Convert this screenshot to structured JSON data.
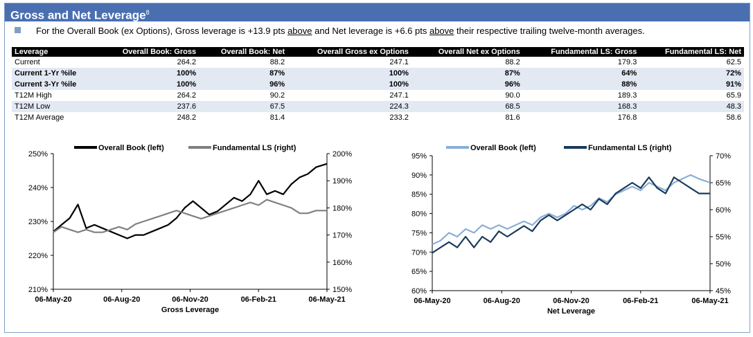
{
  "header": {
    "title": "Gross and Net Leverage",
    "footnote": "8"
  },
  "summary": {
    "pre": "For the Overall Book (ex Options), Gross leverage is +13.9 pts ",
    "u1": "above",
    "mid": " and Net leverage is +6.6 pts ",
    "u2": "above",
    "post": " their respective trailing twelve-month averages."
  },
  "table": {
    "columns": [
      "Leverage",
      "Overall Book: Gross",
      "Overall Book: Net",
      "Overall Gross ex Options",
      "Overall Net ex Options",
      "Fundamental LS: Gross",
      "Fundamental LS: Net"
    ],
    "rows": [
      [
        "Current",
        "264.2",
        "88.2",
        "247.1",
        "88.2",
        "179.3",
        "62.5"
      ],
      [
        "Current 1-Yr %ile",
        "100%",
        "87%",
        "100%",
        "87%",
        "64%",
        "72%"
      ],
      [
        "Current 3-Yr %ile",
        "100%",
        "96%",
        "100%",
        "96%",
        "88%",
        "91%"
      ],
      [
        "T12M High",
        "264.2",
        "90.2",
        "247.1",
        "90.0",
        "189.3",
        "65.9"
      ],
      [
        "T12M Low",
        "237.6",
        "67.5",
        "224.3",
        "68.5",
        "168.3",
        "48.3"
      ],
      [
        "T12M Average",
        "248.2",
        "81.4",
        "233.2",
        "81.6",
        "176.8",
        "58.6"
      ]
    ]
  },
  "chart_data": [
    {
      "type": "line",
      "xlabel": "Gross Leverage",
      "x_ticks": [
        "06-May-20",
        "06-Aug-20",
        "06-Nov-20",
        "06-Feb-21",
        "06-May-21"
      ],
      "y_left": {
        "range": [
          210,
          250
        ],
        "ticks": [
          "210%",
          "220%",
          "230%",
          "240%",
          "250%"
        ]
      },
      "y_right": {
        "range": [
          150,
          200
        ],
        "ticks": [
          "150%",
          "160%",
          "170%",
          "180%",
          "190%",
          "200%"
        ]
      },
      "legend_position": "top",
      "series": [
        {
          "name": "Overall Book (left)",
          "axis": "left",
          "color": "#000000",
          "x": [
            0,
            0.03,
            0.06,
            0.09,
            0.12,
            0.15,
            0.18,
            0.21,
            0.24,
            0.27,
            0.3,
            0.33,
            0.36,
            0.39,
            0.42,
            0.45,
            0.48,
            0.51,
            0.54,
            0.57,
            0.6,
            0.63,
            0.66,
            0.69,
            0.72,
            0.75,
            0.78,
            0.81,
            0.84,
            0.87,
            0.9,
            0.93,
            0.96,
            1.0
          ],
          "values": [
            227,
            229,
            231,
            235,
            228,
            229,
            228,
            227,
            226,
            225,
            226,
            226,
            227,
            228,
            229,
            231,
            234,
            236,
            234,
            232,
            233,
            235,
            237,
            236,
            238,
            242,
            238,
            239,
            238,
            241,
            243,
            244,
            246,
            247
          ]
        },
        {
          "name": "Fundamental LS (right)",
          "axis": "right",
          "color": "#808080",
          "x": [
            0,
            0.03,
            0.06,
            0.09,
            0.12,
            0.15,
            0.18,
            0.21,
            0.24,
            0.27,
            0.3,
            0.33,
            0.36,
            0.39,
            0.42,
            0.45,
            0.48,
            0.51,
            0.54,
            0.57,
            0.6,
            0.63,
            0.66,
            0.69,
            0.72,
            0.75,
            0.78,
            0.81,
            0.84,
            0.87,
            0.9,
            0.93,
            0.96,
            1.0
          ],
          "values": [
            171,
            173,
            172,
            171,
            172,
            171,
            171,
            172,
            173,
            172,
            174,
            175,
            176,
            177,
            178,
            179,
            178,
            177,
            176,
            177,
            178,
            179,
            180,
            181,
            182,
            181,
            183,
            182,
            181,
            180,
            178,
            178,
            179,
            179
          ]
        }
      ]
    },
    {
      "type": "line",
      "xlabel": "Net Leverage",
      "x_ticks": [
        "06-May-20",
        "06-Aug-20",
        "06-Nov-20",
        "06-Feb-21",
        "06-May-21"
      ],
      "y_left": {
        "range": [
          60,
          95
        ],
        "ticks": [
          "60%",
          "65%",
          "70%",
          "75%",
          "80%",
          "85%",
          "90%",
          "95%"
        ]
      },
      "y_right": {
        "range": [
          45,
          70
        ],
        "ticks": [
          "45%",
          "50%",
          "55%",
          "60%",
          "65%",
          "70%"
        ]
      },
      "legend_position": "top",
      "series": [
        {
          "name": "Overall Book (left)",
          "axis": "left",
          "color": "#8aaed6",
          "x": [
            0,
            0.03,
            0.06,
            0.09,
            0.12,
            0.15,
            0.18,
            0.21,
            0.24,
            0.27,
            0.3,
            0.33,
            0.36,
            0.39,
            0.42,
            0.45,
            0.48,
            0.51,
            0.54,
            0.57,
            0.6,
            0.63,
            0.66,
            0.69,
            0.72,
            0.75,
            0.78,
            0.81,
            0.84,
            0.87,
            0.9,
            0.93,
            0.96,
            1.0
          ],
          "values": [
            72,
            73,
            75,
            74,
            76,
            75,
            77,
            76,
            77,
            76,
            77,
            78,
            77,
            79,
            80,
            79,
            80,
            82,
            81,
            82,
            84,
            83,
            85,
            86,
            87,
            86,
            88,
            87,
            86,
            88,
            89,
            90,
            89,
            88
          ]
        },
        {
          "name": "Fundamental LS (right)",
          "axis": "right",
          "color": "#1a3a5c",
          "x": [
            0,
            0.03,
            0.06,
            0.09,
            0.12,
            0.15,
            0.18,
            0.21,
            0.24,
            0.27,
            0.3,
            0.33,
            0.36,
            0.39,
            0.42,
            0.45,
            0.48,
            0.51,
            0.54,
            0.57,
            0.6,
            0.63,
            0.66,
            0.69,
            0.72,
            0.75,
            0.78,
            0.81,
            0.84,
            0.87,
            0.9,
            0.93,
            0.96,
            1.0
          ],
          "values": [
            52,
            53,
            54,
            53,
            55,
            53,
            55,
            54,
            56,
            55,
            56,
            57,
            56,
            58,
            59,
            58,
            59,
            60,
            61,
            60,
            62,
            61,
            63,
            64,
            65,
            64,
            66,
            64,
            63,
            66,
            65,
            64,
            63,
            63
          ]
        }
      ]
    }
  ]
}
